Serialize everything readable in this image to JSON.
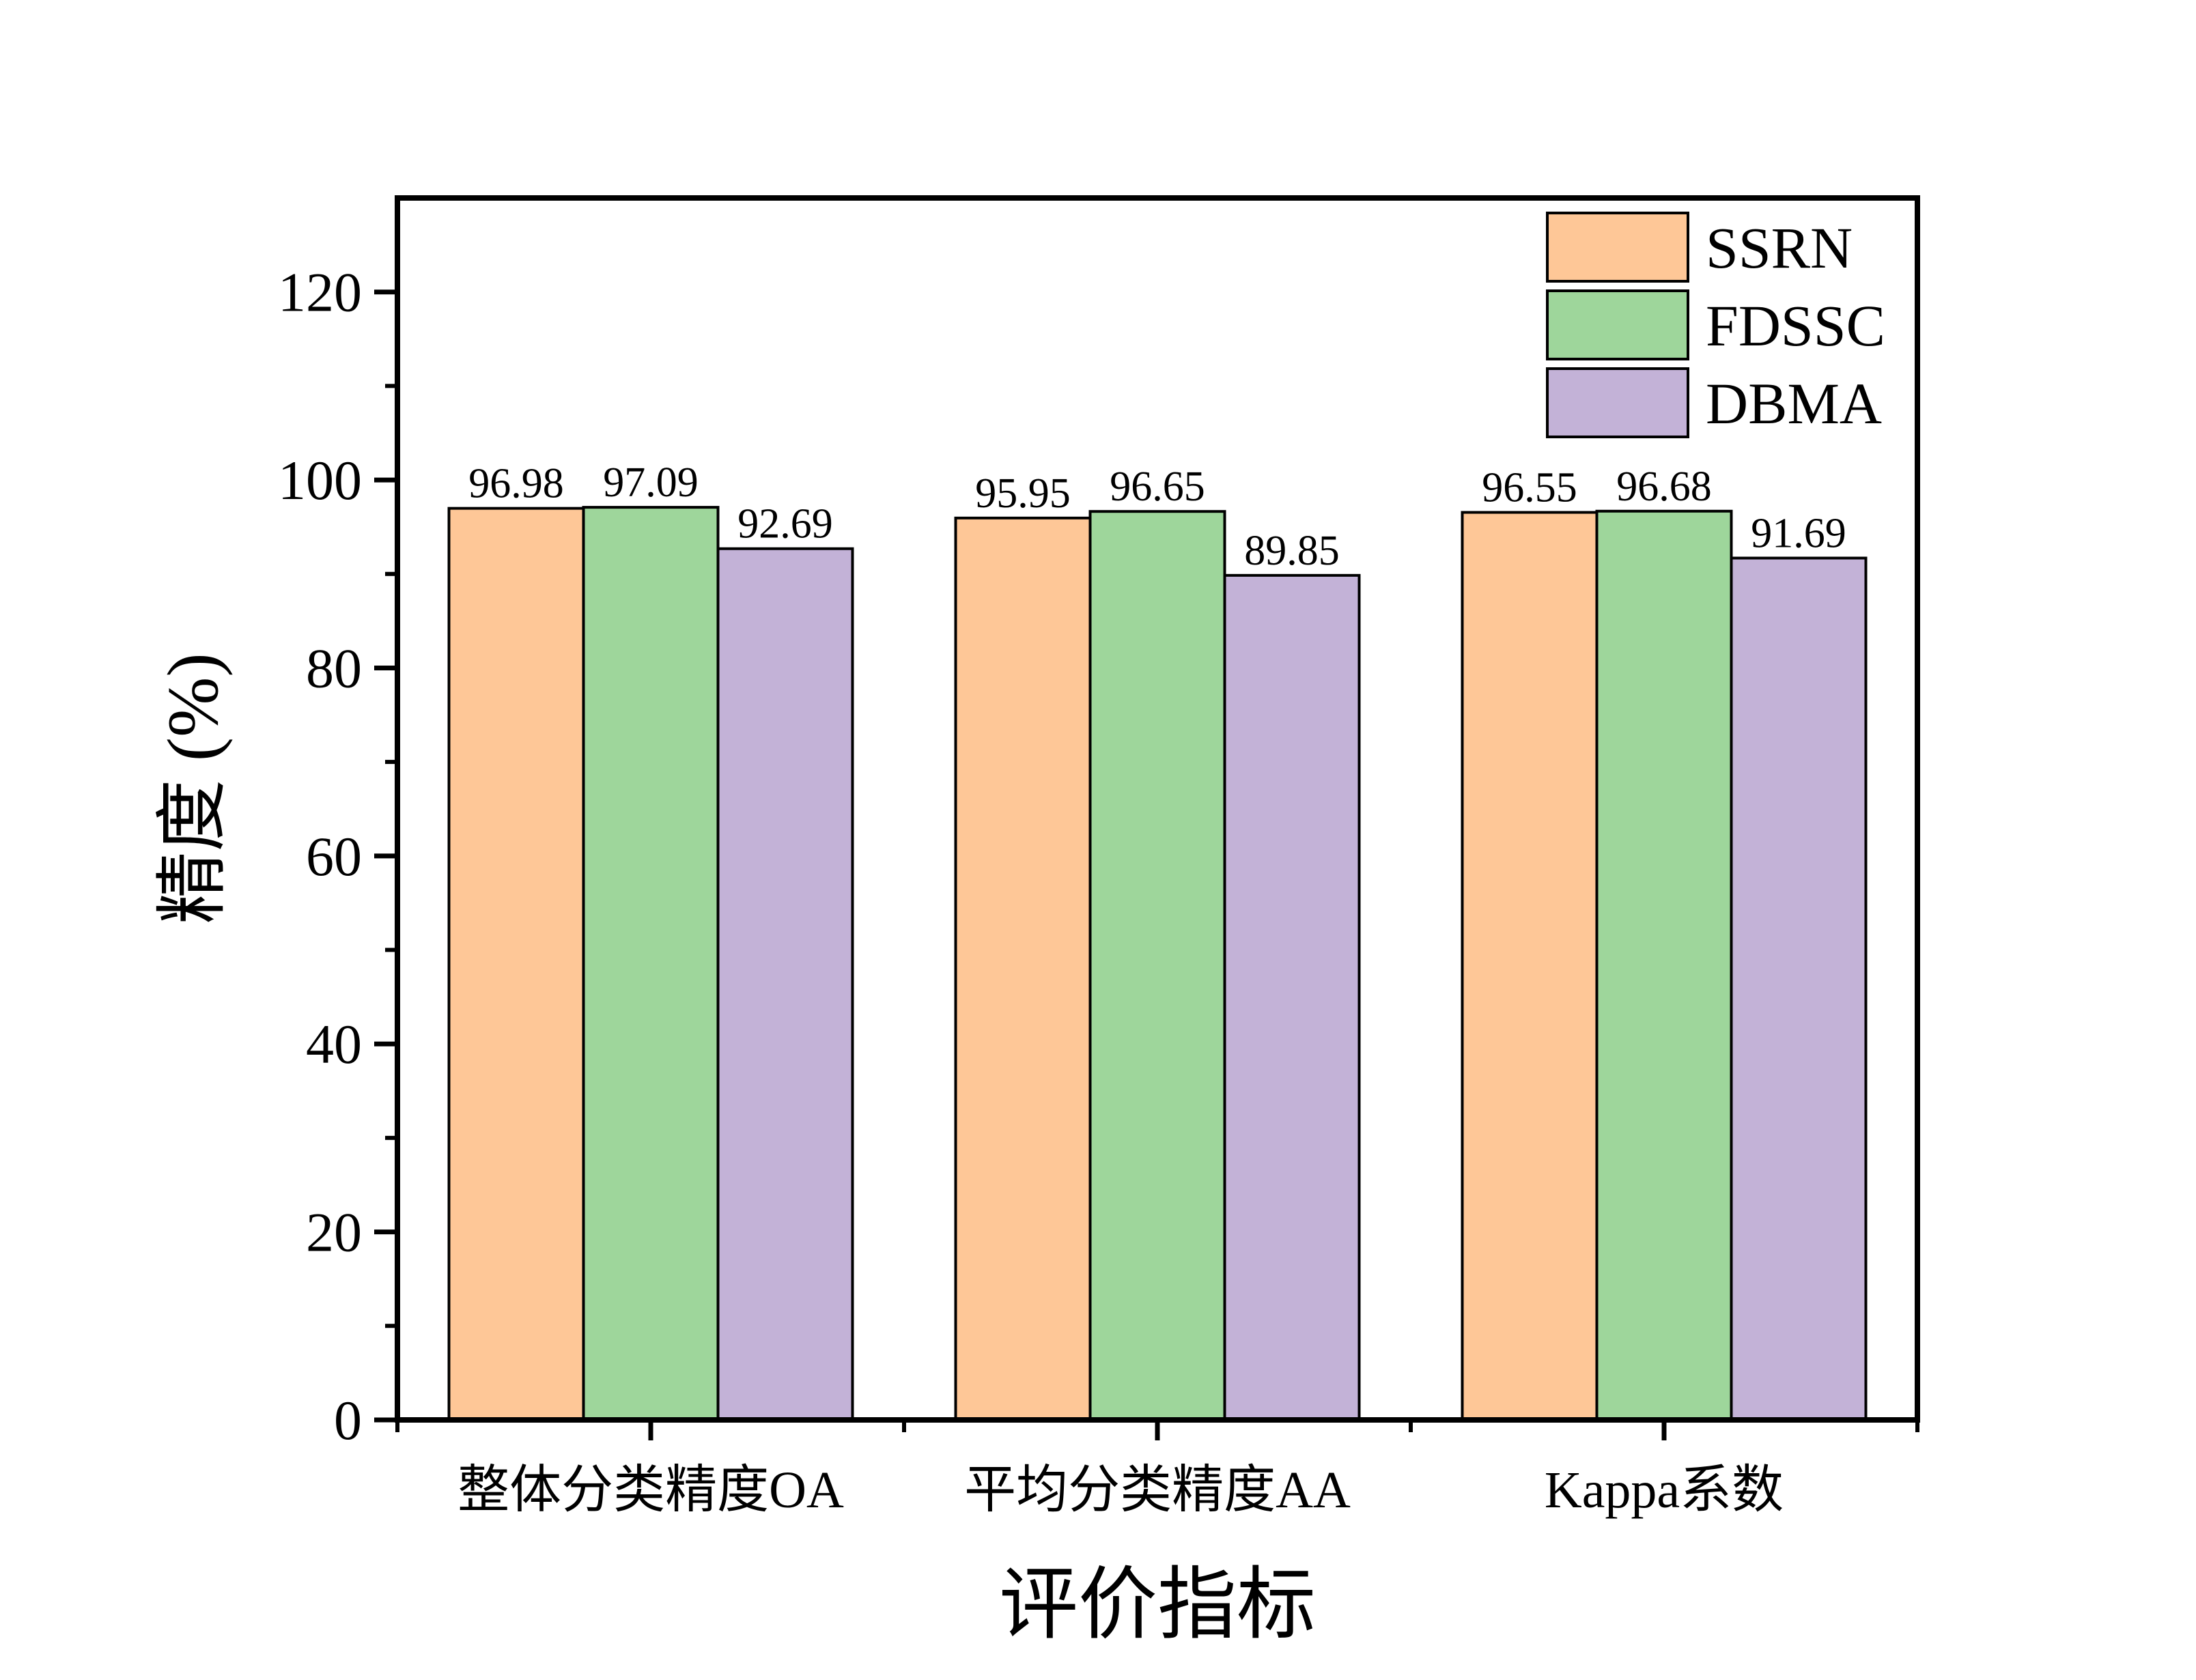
{
  "chart_data": {
    "type": "bar",
    "categories": [
      "整体分类精度OA",
      "平均分类精度AA",
      "Kappa系数"
    ],
    "series": [
      {
        "name": "SSRN",
        "values": [
          96.98,
          95.95,
          96.55
        ],
        "color": "#FEC797"
      },
      {
        "name": "FDSSC",
        "values": [
          97.09,
          96.65,
          96.68
        ],
        "color": "#9ED69B"
      },
      {
        "name": "DBMA",
        "values": [
          92.69,
          89.85,
          91.69
        ],
        "color": "#C3B2D7"
      }
    ],
    "xlabel": "评价指标",
    "ylabel": "精度 (%)",
    "ylim": [
      0,
      130
    ],
    "yticks": [
      0,
      20,
      40,
      60,
      80,
      100,
      120
    ],
    "data_labels": true,
    "grid": false,
    "legend_position": "top-right"
  }
}
